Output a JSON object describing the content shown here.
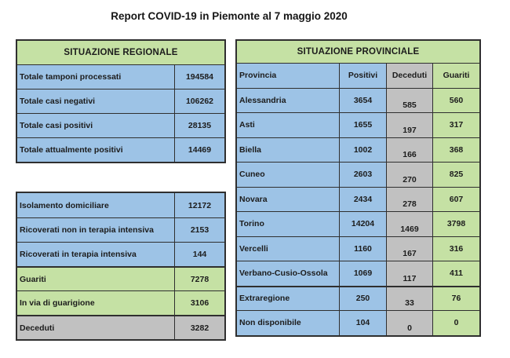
{
  "title": "Report COVID-19 in Piemonte al 7 maggio 2020",
  "colors": {
    "row_blue": "#9dc3e6",
    "row_green": "#c5e1a4",
    "row_gray": "#c1c1c1",
    "border": "#2f2f2f",
    "background": "#ffffff"
  },
  "regional": {
    "header": "SITUAZIONE REGIONALE",
    "rows": [
      {
        "label": "Totale tamponi processati",
        "value": "194584"
      },
      {
        "label": "Totale casi negativi",
        "value": "106262"
      },
      {
        "label": "Totale casi positivi",
        "value": "28135"
      },
      {
        "label": "Totale attualmente positivi",
        "value": "14469"
      }
    ]
  },
  "detail": {
    "rows": [
      {
        "label": "Isolamento domiciliare",
        "value": "12172",
        "tone": "blue"
      },
      {
        "label": "Ricoverati non in terapia intensiva",
        "value": "2153",
        "tone": "blue"
      },
      {
        "label": "Ricoverati in terapia intensiva",
        "value": "144",
        "tone": "blue"
      },
      {
        "label": "Guariti",
        "value": "7278",
        "tone": "green"
      },
      {
        "label": "In via di guarigione",
        "value": "3106",
        "tone": "green"
      },
      {
        "label": "Deceduti",
        "value": "3282",
        "tone": "gray"
      }
    ]
  },
  "provincial": {
    "header": "SITUAZIONE PROVINCIALE",
    "columns": [
      "Provincia",
      "Positivi",
      "Deceduti",
      "Guariti"
    ],
    "rows": [
      {
        "provincia": "Alessandria",
        "positivi": "3654",
        "deceduti": "585",
        "guariti": "560"
      },
      {
        "provincia": "Asti",
        "positivi": "1655",
        "deceduti": "197",
        "guariti": "317"
      },
      {
        "provincia": "Biella",
        "positivi": "1002",
        "deceduti": "166",
        "guariti": "368"
      },
      {
        "provincia": "Cuneo",
        "positivi": "2603",
        "deceduti": "270",
        "guariti": "825"
      },
      {
        "provincia": "Novara",
        "positivi": "2434",
        "deceduti": "278",
        "guariti": "607"
      },
      {
        "provincia": "Torino",
        "positivi": "14204",
        "deceduti": "1469",
        "guariti": "3798"
      },
      {
        "provincia": "Vercelli",
        "positivi": "1160",
        "deceduti": "167",
        "guariti": "316"
      },
      {
        "provincia": "Verbano-Cusio-Ossola",
        "positivi": "1069",
        "deceduti": "117",
        "guariti": "411"
      },
      {
        "provincia": "Extraregione",
        "positivi": "250",
        "deceduti": "33",
        "guariti": "76"
      },
      {
        "provincia": "Non disponibile",
        "positivi": "104",
        "deceduti": "0",
        "guariti": "0"
      }
    ]
  }
}
